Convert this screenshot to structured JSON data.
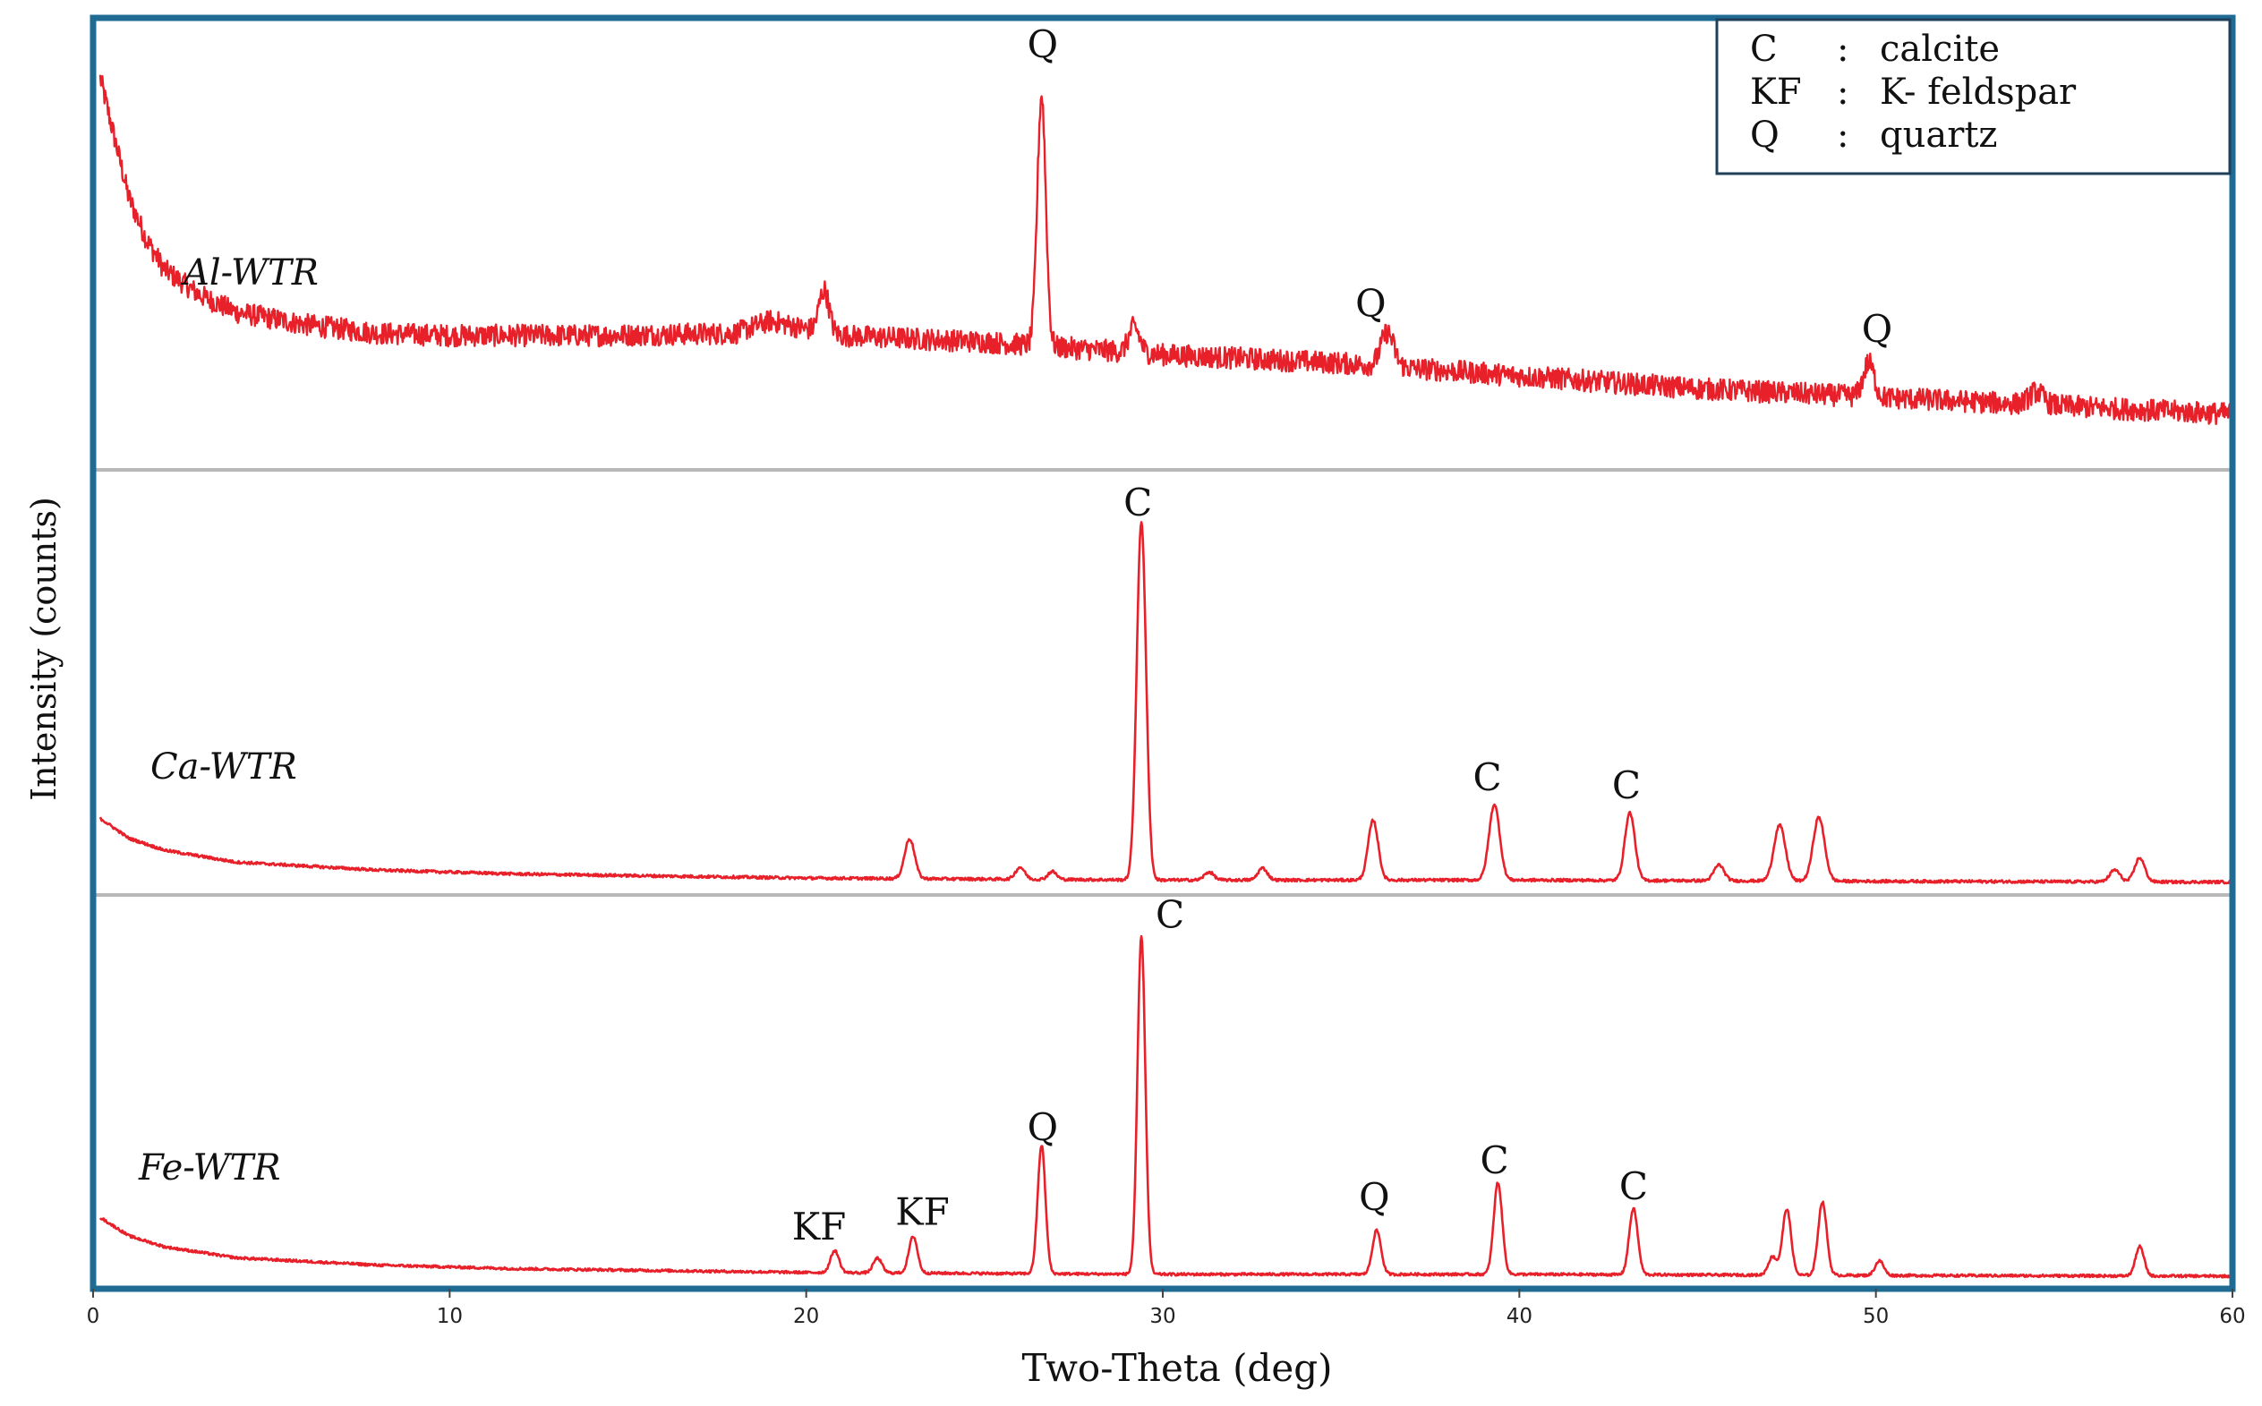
{
  "chart_data": {
    "type": "line",
    "title": "",
    "xlabel": "Two-Theta (deg)",
    "ylabel": "Intensity (counts)",
    "xlim": [
      0,
      60
    ],
    "x_ticks": [
      "0",
      "10",
      "20",
      "30",
      "40",
      "50",
      "60"
    ],
    "line_color": "#e8202a",
    "frame_color": "#1f6b94",
    "legend": {
      "position": "top-right",
      "entries": [
        {
          "code": "C",
          "sep": ":",
          "name": "calcite"
        },
        {
          "code": "KF",
          "sep": ":",
          "name": "K- feldspar"
        },
        {
          "code": "Q",
          "sep": ":",
          "name": "quartz"
        }
      ]
    },
    "series": [
      {
        "name": "Al-WTR",
        "ylim": [
          0,
          100
        ],
        "baseline": [
          [
            0.2,
            90
          ],
          [
            0.6,
            76
          ],
          [
            1,
            62
          ],
          [
            1.5,
            52
          ],
          [
            2,
            45
          ],
          [
            3,
            39
          ],
          [
            4,
            35
          ],
          [
            6,
            32
          ],
          [
            8,
            30
          ],
          [
            10,
            29.5
          ],
          [
            14,
            29.5
          ],
          [
            18,
            30
          ],
          [
            19,
            33
          ],
          [
            20,
            31
          ],
          [
            21,
            29.5
          ],
          [
            25,
            28
          ],
          [
            30,
            25
          ],
          [
            35,
            23
          ],
          [
            40,
            20
          ],
          [
            45,
            17
          ],
          [
            50,
            15
          ],
          [
            55,
            13
          ],
          [
            60,
            11
          ]
        ],
        "peaks": [
          {
            "x": 20.5,
            "h": 10,
            "w": 0.14
          },
          {
            "x": 26.6,
            "h": 59,
            "w": 0.12
          },
          {
            "x": 29.2,
            "h": 6,
            "w": 0.15
          },
          {
            "x": 36.3,
            "h": 8,
            "w": 0.18
          },
          {
            "x": 49.8,
            "h": 8,
            "w": 0.15
          },
          {
            "x": 54.5,
            "h": 3,
            "w": 0.2
          }
        ],
        "annotations": [
          {
            "text": "Q",
            "x": 26.2,
            "y": 95
          },
          {
            "text": "Q",
            "x": 35.4,
            "y": 34
          },
          {
            "text": "Q",
            "x": 49.6,
            "y": 28
          }
        ]
      },
      {
        "name": "Ca-WTR",
        "ylim": [
          0,
          100
        ],
        "baseline": [
          [
            0.2,
            17
          ],
          [
            1,
            12
          ],
          [
            2,
            9
          ],
          [
            4,
            6
          ],
          [
            8,
            4
          ],
          [
            12,
            3
          ],
          [
            20,
            2
          ],
          [
            30,
            1.5
          ],
          [
            40,
            1.5
          ],
          [
            50,
            1.2
          ],
          [
            60,
            1
          ]
        ],
        "peaks": [
          {
            "x": 22.9,
            "h": 10,
            "w": 0.14
          },
          {
            "x": 26.0,
            "h": 3,
            "w": 0.13
          },
          {
            "x": 26.9,
            "h": 2,
            "w": 0.12
          },
          {
            "x": 29.4,
            "h": 90,
            "w": 0.13
          },
          {
            "x": 31.3,
            "h": 2,
            "w": 0.13
          },
          {
            "x": 32.8,
            "h": 3,
            "w": 0.13
          },
          {
            "x": 35.9,
            "h": 15,
            "w": 0.14
          },
          {
            "x": 39.3,
            "h": 19,
            "w": 0.15
          },
          {
            "x": 43.1,
            "h": 17,
            "w": 0.14
          },
          {
            "x": 45.6,
            "h": 4,
            "w": 0.14
          },
          {
            "x": 47.3,
            "h": 14,
            "w": 0.16
          },
          {
            "x": 48.4,
            "h": 16,
            "w": 0.16
          },
          {
            "x": 56.7,
            "h": 3,
            "w": 0.14
          },
          {
            "x": 57.4,
            "h": 6,
            "w": 0.14
          }
        ],
        "annotations": [
          {
            "text": "C",
            "x": 28.9,
            "y": 93
          },
          {
            "text": "C",
            "x": 38.7,
            "y": 24
          },
          {
            "text": "C",
            "x": 42.6,
            "y": 22
          }
        ]
      },
      {
        "name": "Fe-WTR",
        "ylim": [
          0,
          100
        ],
        "baseline": [
          [
            0.2,
            17
          ],
          [
            1,
            12
          ],
          [
            2,
            9
          ],
          [
            4,
            6
          ],
          [
            8,
            4
          ],
          [
            12,
            3
          ],
          [
            20,
            2
          ],
          [
            30,
            1.5
          ],
          [
            40,
            1.5
          ],
          [
            50,
            1.2
          ],
          [
            60,
            1
          ]
        ],
        "peaks": [
          {
            "x": 20.8,
            "h": 6,
            "w": 0.12
          },
          {
            "x": 22.0,
            "h": 4,
            "w": 0.12
          },
          {
            "x": 23.0,
            "h": 10,
            "w": 0.12
          },
          {
            "x": 26.6,
            "h": 35,
            "w": 0.11
          },
          {
            "x": 29.4,
            "h": 92,
            "w": 0.11
          },
          {
            "x": 36.0,
            "h": 12,
            "w": 0.12
          },
          {
            "x": 39.4,
            "h": 25,
            "w": 0.12
          },
          {
            "x": 43.2,
            "h": 18,
            "w": 0.12
          },
          {
            "x": 47.1,
            "h": 5,
            "w": 0.12
          },
          {
            "x": 47.5,
            "h": 18,
            "w": 0.12
          },
          {
            "x": 48.5,
            "h": 20,
            "w": 0.12
          },
          {
            "x": 50.1,
            "h": 4,
            "w": 0.12
          },
          {
            "x": 57.4,
            "h": 8,
            "w": 0.12
          }
        ],
        "annotations": [
          {
            "text": "KF",
            "x": 19.6,
            "y": 11
          },
          {
            "text": "KF",
            "x": 22.5,
            "y": 15
          },
          {
            "text": "Q",
            "x": 26.2,
            "y": 38
          },
          {
            "text": "Q",
            "x": 35.5,
            "y": 19
          },
          {
            "text": "C",
            "x": 38.9,
            "y": 29
          },
          {
            "text": "C",
            "x": 42.8,
            "y": 22
          },
          {
            "text": "C",
            "x": 29.8,
            "y": 96
          }
        ]
      }
    ]
  }
}
